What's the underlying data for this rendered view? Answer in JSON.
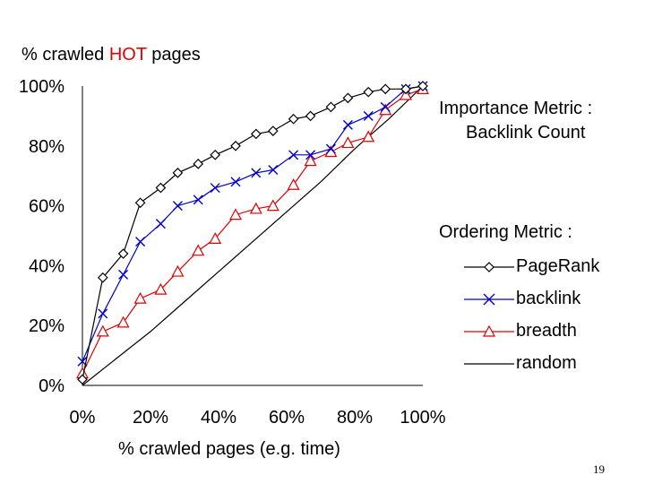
{
  "chart_data": {
    "type": "line",
    "ylabel_prefix": "% crawled ",
    "ylabel_highlight": "HOT",
    "ylabel_suffix": " pages",
    "xlabel": "% crawled pages (e.g. time)",
    "xlim": [
      0,
      100
    ],
    "ylim": [
      0,
      100
    ],
    "xticks": [
      0,
      20,
      40,
      60,
      80,
      100
    ],
    "yticks": [
      0,
      20,
      40,
      60,
      80,
      100
    ],
    "xtick_labels": [
      "0%",
      "20%",
      "40%",
      "60%",
      "80%",
      "100%"
    ],
    "ytick_labels": [
      "0%",
      "20%",
      "40%",
      "60%",
      "80%",
      "100%"
    ],
    "grid": false,
    "legend_position": "right",
    "series": [
      {
        "name": "PageRank",
        "color": "#000000",
        "marker": "diamond",
        "x": [
          0,
          6,
          12,
          17,
          23,
          28,
          34,
          39,
          45,
          51,
          56,
          62,
          67,
          73,
          78,
          84,
          89,
          95,
          100
        ],
        "y": [
          2,
          36,
          44,
          61,
          66,
          71,
          74,
          77,
          80,
          84,
          85,
          89,
          90,
          93,
          96,
          98,
          99,
          99,
          100
        ]
      },
      {
        "name": "backlink",
        "color": "#0000cc",
        "marker": "x",
        "x": [
          0,
          6,
          12,
          17,
          23,
          28,
          34,
          39,
          45,
          51,
          56,
          62,
          67,
          73,
          78,
          84,
          89,
          95,
          100
        ],
        "y": [
          8,
          24,
          37,
          48,
          54,
          60,
          62,
          66,
          68,
          71,
          72,
          77,
          77,
          79,
          87,
          90,
          93,
          99,
          100
        ]
      },
      {
        "name": "breadth",
        "color": "#e00000",
        "marker": "triangle",
        "x": [
          0,
          6,
          12,
          17,
          23,
          28,
          34,
          39,
          45,
          51,
          56,
          62,
          67,
          73,
          78,
          84,
          89,
          95,
          100
        ],
        "y": [
          4,
          18,
          21,
          29,
          32,
          38,
          45,
          49,
          57,
          59,
          60,
          67,
          75,
          78,
          81,
          83,
          92,
          97,
          99
        ]
      },
      {
        "name": "random",
        "color": "#000000",
        "marker": "none",
        "x": [
          0,
          10,
          20,
          30,
          40,
          50,
          60,
          70,
          80,
          90,
          100
        ],
        "y": [
          0,
          9,
          18,
          28,
          38,
          48,
          58,
          68,
          79,
          89,
          100
        ]
      }
    ]
  },
  "annotations": {
    "importance_title": "Importance Metric :",
    "importance_value": "Backlink Count",
    "ordering_title": "Ordering Metric :"
  },
  "page_number": "19"
}
